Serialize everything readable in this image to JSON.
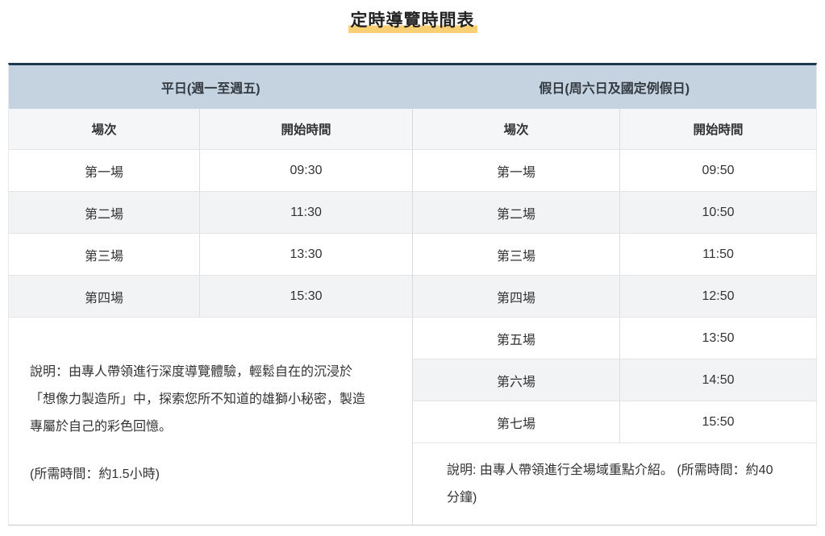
{
  "page": {
    "title": "定時導覽時間表"
  },
  "table": {
    "weekday": {
      "header": "平日(週一至週五)",
      "columns": {
        "session": "場次",
        "time": "開始時間"
      },
      "rows": [
        {
          "session": "第一場",
          "time": "09:30"
        },
        {
          "session": "第二場",
          "time": "11:30"
        },
        {
          "session": "第三場",
          "time": "13:30"
        },
        {
          "session": "第四場",
          "time": "15:30"
        }
      ],
      "note_lines": [
        "說明：由專人帶領進行深度導覽體驗，輕鬆自在的沉浸於",
        "「想像力製造所」中，探索您所不知道的雄獅小秘密，製造",
        "專屬於自己的彩色回憶。"
      ],
      "duration_note": "(所需時間：約1.5小時)"
    },
    "holiday": {
      "header": "假日(周六日及國定例假日)",
      "columns": {
        "session": "場次",
        "time": "開始時間"
      },
      "rows": [
        {
          "session": "第一場",
          "time": "09:50"
        },
        {
          "session": "第二場",
          "time": "10:50"
        },
        {
          "session": "第三場",
          "time": "11:50"
        },
        {
          "session": "第四場",
          "time": "12:50"
        },
        {
          "session": "第五場",
          "time": "13:50"
        },
        {
          "session": "第六場",
          "time": "14:50"
        },
        {
          "session": "第七場",
          "time": "15:50"
        }
      ],
      "note_lines": [
        "說明: 由專人帶領進行全場域重點介紹。 (所需時間：約40",
        "分鐘)"
      ]
    }
  },
  "colors": {
    "top_border": "#1b3a52",
    "header_bg": "#c4d3df",
    "title_highlight": "#f8cf72",
    "alt_row_bg": "#f2f3f5"
  }
}
